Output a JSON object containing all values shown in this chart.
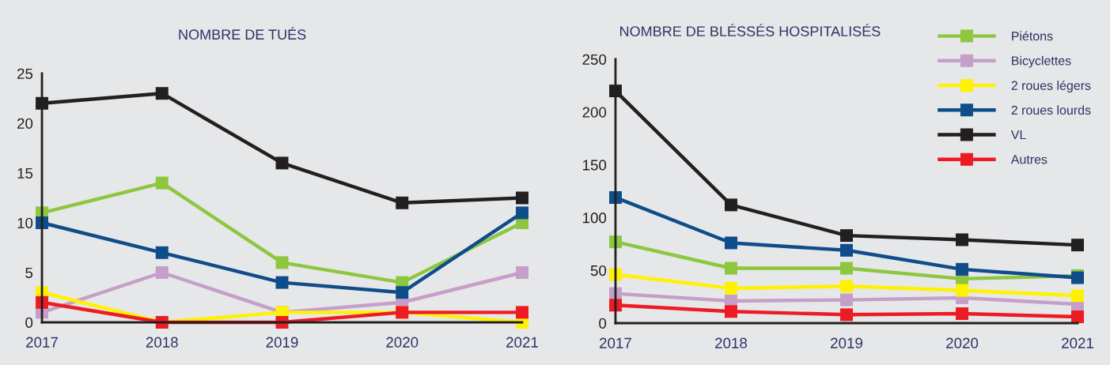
{
  "chart_data": [
    {
      "type": "line",
      "title": "NOMBRE DE TUÉS",
      "categories": [
        "2017",
        "2018",
        "2019",
        "2020",
        "2021"
      ],
      "ylim": [
        0,
        25
      ],
      "yticks": [
        0,
        5,
        10,
        15,
        20,
        25
      ],
      "grid": false,
      "legend": false,
      "marker": "square",
      "line_style": "solid",
      "series": [
        {
          "color": "#8dc63f",
          "values": [
            11,
            14,
            6,
            4,
            10
          ]
        },
        {
          "color": "#c59fc9",
          "values": [
            1,
            5,
            1,
            2,
            5
          ]
        },
        {
          "color": "#fff200",
          "values": [
            3,
            0,
            1,
            1,
            0
          ]
        },
        {
          "color": "#0f4c8a",
          "values": [
            10,
            7,
            4,
            3,
            11
          ]
        },
        {
          "color": "#231f20",
          "values": [
            22,
            23,
            16,
            12,
            12.5
          ]
        },
        {
          "color": "#ed1c24",
          "values": [
            2,
            0,
            0,
            1,
            1
          ]
        }
      ]
    },
    {
      "type": "line",
      "title": "NOMBRE DE BLÉSSÉS HOSPITALISÉS",
      "categories": [
        "2017",
        "2018",
        "2019",
        "2020",
        "2021"
      ],
      "ylim": [
        0,
        250
      ],
      "yticks": [
        0,
        50,
        100,
        150,
        200,
        250
      ],
      "grid": false,
      "legend": "top right",
      "marker": "square",
      "line_style": "solid",
      "series": [
        {
          "name": "Piétons",
          "color": "#8dc63f",
          "values": [
            77,
            52,
            52,
            42,
            45
          ]
        },
        {
          "name": "Bicyclettes",
          "color": "#c59fc9",
          "values": [
            28,
            21,
            22,
            24,
            18
          ]
        },
        {
          "name": "2 roues légers",
          "color": "#fff200",
          "values": [
            46,
            33,
            35,
            31,
            26
          ]
        },
        {
          "name": "2 roues lourds",
          "color": "#0f4c8a",
          "values": [
            119,
            76,
            69,
            51,
            43
          ]
        },
        {
          "name": "VL",
          "color": "#231f20",
          "values": [
            220,
            112,
            83,
            79,
            74
          ]
        },
        {
          "name": "Autres",
          "color": "#ed1c24",
          "values": [
            17,
            11,
            8,
            9,
            6
          ]
        }
      ]
    }
  ]
}
